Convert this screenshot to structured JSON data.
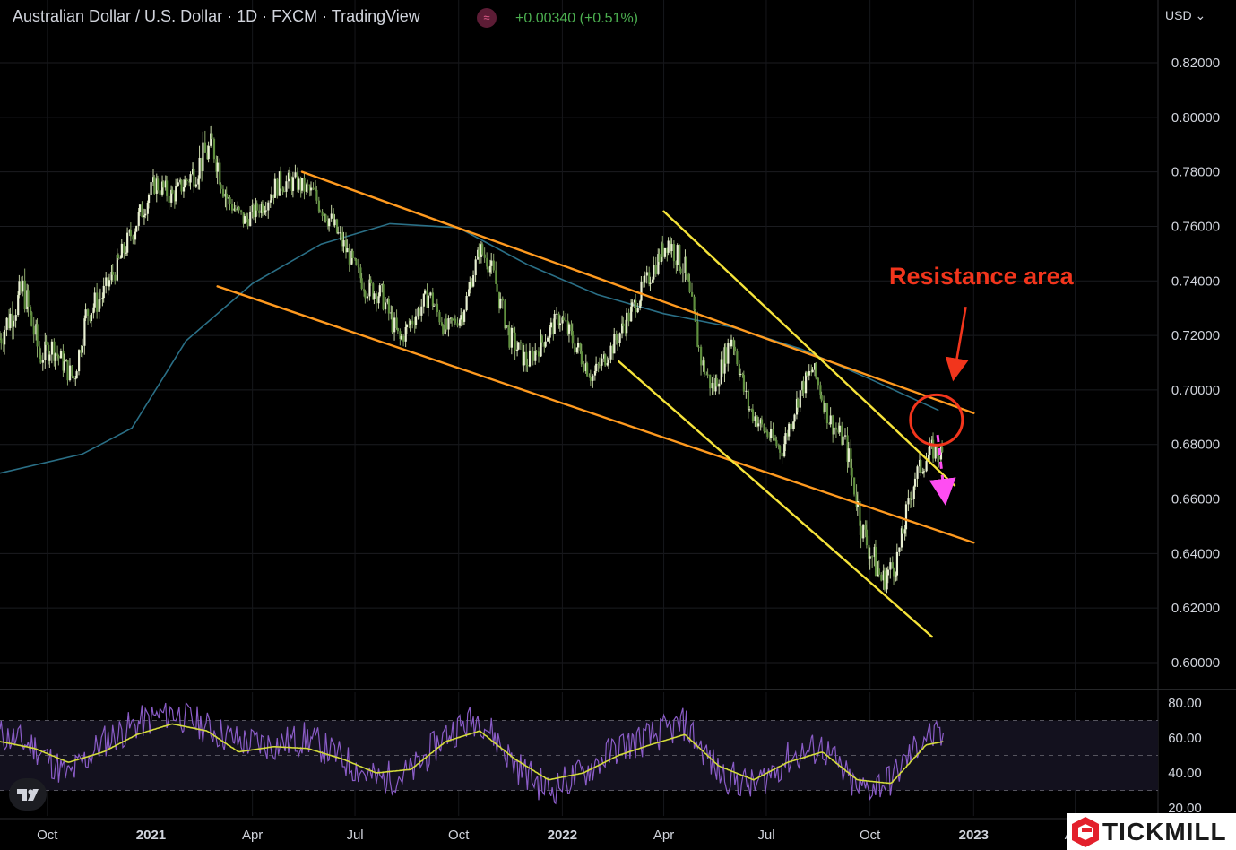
{
  "header": {
    "title": "Australian Dollar / U.S. Dollar · 1D · FXCM · TradingView",
    "indicator_icon": "≈",
    "change": "+0.00340 (+0.51%)",
    "currency": "USD"
  },
  "annotation": {
    "text": "Resistance area"
  },
  "brand": {
    "name": "TICKMILL"
  },
  "colors": {
    "background": "#000000",
    "channel": "#ff9a1f",
    "wedge": "#f5e33a",
    "moving_average": "#2a6f86",
    "rsi": "#8a5cc7",
    "rsi_ma": "#d4dc3a",
    "annotation": "#f2351c",
    "projection": "#ff4df2",
    "positive": "#4caf50"
  },
  "chart_data": [
    {
      "type": "line",
      "title": "Australian Dollar / U.S. Dollar · 1D · FXCM · TradingView",
      "x_tick_labels": [
        "Oct",
        "2021",
        "Apr",
        "Jul",
        "Oct",
        "2022",
        "Apr",
        "Jul",
        "Oct",
        "2023",
        "Apr"
      ],
      "y_tick_labels": [
        "0.82000",
        "0.80000",
        "0.78000",
        "0.76000",
        "0.74000",
        "0.72000",
        "0.70000",
        "0.68000",
        "0.66000",
        "0.64000",
        "0.62000",
        "0.60000"
      ],
      "ylim": [
        0.595,
        0.835
      ],
      "grid": true,
      "x_range": [
        "2020-08-20",
        "2023-06-12"
      ],
      "series": [
        {
          "kind": "candlestick",
          "x": [
            "2020-08-20",
            "2020-09-10",
            "2020-09-25",
            "2020-10-05",
            "2020-10-25",
            "2020-11-05",
            "2020-11-20",
            "2020-12-05",
            "2020-12-20",
            "2021-01-05",
            "2021-01-20",
            "2021-02-05",
            "2021-02-25",
            "2021-03-10",
            "2021-03-25",
            "2021-04-10",
            "2021-04-25",
            "2021-05-10",
            "2021-05-25",
            "2021-06-10",
            "2021-06-25",
            "2021-07-10",
            "2021-07-25",
            "2021-08-10",
            "2021-08-20",
            "2021-09-05",
            "2021-09-20",
            "2021-10-05",
            "2021-10-20",
            "2021-10-30",
            "2021-11-15",
            "2021-12-01",
            "2021-12-15",
            "2021-12-30",
            "2022-01-15",
            "2022-01-28",
            "2022-02-15",
            "2022-03-05",
            "2022-03-20",
            "2022-04-05",
            "2022-04-20",
            "2022-05-05",
            "2022-05-15",
            "2022-06-01",
            "2022-06-15",
            "2022-06-30",
            "2022-07-15",
            "2022-08-01",
            "2022-08-12",
            "2022-08-25",
            "2022-09-10",
            "2022-09-25",
            "2022-10-12",
            "2022-10-25",
            "2022-11-10",
            "2022-11-25",
            "2022-12-06"
          ],
          "close": [
            0.719,
            0.737,
            0.712,
            0.716,
            0.704,
            0.728,
            0.735,
            0.748,
            0.762,
            0.776,
            0.771,
            0.778,
            0.79,
            0.77,
            0.762,
            0.768,
            0.776,
            0.776,
            0.772,
            0.762,
            0.75,
            0.738,
            0.735,
            0.718,
            0.725,
            0.735,
            0.722,
            0.728,
            0.752,
            0.745,
            0.72,
            0.71,
            0.718,
            0.727,
            0.715,
            0.705,
            0.716,
            0.73,
            0.742,
            0.755,
            0.744,
            0.71,
            0.7,
            0.72,
            0.694,
            0.685,
            0.678,
            0.7,
            0.708,
            0.69,
            0.68,
            0.648,
            0.63,
            0.637,
            0.668,
            0.678,
            0.676
          ],
          "low": [
            0.71,
            0.705,
            0.702,
            0.7,
            0.699,
            0.71,
            0.722,
            0.74,
            0.75,
            0.763,
            0.76,
            0.77,
            0.765,
            0.76,
            0.755,
            0.76,
            0.768,
            0.768,
            0.76,
            0.748,
            0.742,
            0.73,
            0.72,
            0.71,
            0.713,
            0.722,
            0.715,
            0.72,
            0.74,
            0.735,
            0.705,
            0.7,
            0.71,
            0.715,
            0.7,
            0.697,
            0.705,
            0.72,
            0.732,
            0.744,
            0.73,
            0.695,
            0.69,
            0.705,
            0.685,
            0.676,
            0.668,
            0.69,
            0.695,
            0.681,
            0.668,
            0.628,
            0.617,
            0.625,
            0.655,
            0.665,
            0.668
          ],
          "high": [
            0.728,
            0.741,
            0.72,
            0.722,
            0.715,
            0.734,
            0.742,
            0.758,
            0.77,
            0.782,
            0.778,
            0.786,
            0.801,
            0.778,
            0.77,
            0.775,
            0.79,
            0.782,
            0.778,
            0.77,
            0.758,
            0.745,
            0.742,
            0.725,
            0.73,
            0.74,
            0.73,
            0.735,
            0.755,
            0.752,
            0.726,
            0.718,
            0.725,
            0.732,
            0.722,
            0.712,
            0.722,
            0.738,
            0.748,
            0.765,
            0.752,
            0.718,
            0.705,
            0.728,
            0.7,
            0.692,
            0.684,
            0.708,
            0.712,
            0.695,
            0.69,
            0.655,
            0.64,
            0.645,
            0.675,
            0.682,
            0.685
          ]
        },
        {
          "name": "",
          "kind": "moving_average",
          "x": [
            "2020-08-20",
            "2020-11-01",
            "2020-12-15",
            "2021-02-01",
            "2021-04-01",
            "2021-06-01",
            "2021-08-01",
            "2021-10-01",
            "2021-12-01",
            "2022-02-01",
            "2022-04-01",
            "2022-06-01",
            "2022-08-01",
            "2022-10-01",
            "2022-12-01"
          ],
          "values": [
            0.6695,
            0.6765,
            0.686,
            0.718,
            0.739,
            0.7535,
            0.761,
            0.7595,
            0.746,
            0.735,
            0.728,
            0.723,
            0.715,
            0.704,
            0.6925
          ]
        }
      ],
      "trendlines": [
        {
          "name": "",
          "color": "channel",
          "from": [
            "2021-05-15",
            0.78
          ],
          "to": [
            "2023-01-01",
            0.6915
          ]
        },
        {
          "name": "",
          "color": "channel",
          "from": [
            "2021-03-01",
            0.738
          ],
          "to": [
            "2023-01-01",
            0.644
          ]
        },
        {
          "name": "",
          "color": "wedge",
          "from": [
            "2022-04-01",
            0.7655
          ],
          "to": [
            "2022-12-15",
            0.665
          ]
        },
        {
          "name": "",
          "color": "wedge",
          "from": [
            "2022-02-20",
            0.7105
          ],
          "to": [
            "2022-11-25",
            0.6095
          ]
        }
      ],
      "markers": [
        {
          "kind": "ellipse",
          "center": [
            "2022-11-25",
            0.689
          ],
          "color": "annotation"
        },
        {
          "kind": "arrow",
          "from": [
            "2022-12-25",
            0.7305
          ],
          "to": [
            "2022-12-15",
            0.7065
          ],
          "color": "annotation"
        },
        {
          "kind": "dashed-arrow",
          "from": [
            "2022-11-30",
            0.6835
          ],
          "to": [
            "2022-12-06",
            0.6615
          ],
          "color": "projection"
        }
      ]
    },
    {
      "type": "line",
      "title": "",
      "y_tick_labels": [
        "80.00",
        "60.00",
        "40.00",
        "20.00"
      ],
      "ylim": [
        19,
        82
      ],
      "bands": [
        30,
        50,
        70
      ],
      "series": [
        {
          "name": "",
          "kind": "rsi",
          "x": [
            "2020-08-20",
            "2020-09-20",
            "2020-10-20",
            "2020-11-20",
            "2020-12-20",
            "2021-01-20",
            "2021-02-20",
            "2021-03-20",
            "2021-04-20",
            "2021-05-20",
            "2021-06-20",
            "2021-07-20",
            "2021-08-20",
            "2021-09-20",
            "2021-10-20",
            "2021-11-20",
            "2021-12-20",
            "2022-01-20",
            "2022-02-20",
            "2022-03-20",
            "2022-04-20",
            "2022-05-20",
            "2022-06-20",
            "2022-07-20",
            "2022-08-20",
            "2022-09-20",
            "2022-10-20",
            "2022-11-20",
            "2022-12-06"
          ],
          "values": [
            62,
            55,
            38,
            58,
            68,
            75,
            66,
            58,
            56,
            60,
            48,
            36,
            40,
            62,
            72,
            45,
            30,
            40,
            55,
            60,
            68,
            40,
            32,
            48,
            55,
            30,
            36,
            62,
            58
          ]
        },
        {
          "name": "",
          "kind": "rsi_ma",
          "x": [
            "2020-08-20",
            "2020-09-20",
            "2020-10-20",
            "2020-11-20",
            "2020-12-20",
            "2021-01-20",
            "2021-02-20",
            "2021-03-20",
            "2021-04-20",
            "2021-05-20",
            "2021-06-20",
            "2021-07-20",
            "2021-08-20",
            "2021-09-20",
            "2021-10-20",
            "2021-11-20",
            "2021-12-20",
            "2022-01-20",
            "2022-02-20",
            "2022-03-20",
            "2022-04-20",
            "2022-05-20",
            "2022-06-20",
            "2022-07-20",
            "2022-08-20",
            "2022-09-20",
            "2022-10-20",
            "2022-11-20",
            "2022-12-06"
          ],
          "values": [
            58,
            54,
            46,
            52,
            62,
            68,
            64,
            52,
            55,
            54,
            48,
            40,
            42,
            58,
            64,
            48,
            36,
            40,
            50,
            56,
            62,
            44,
            36,
            46,
            52,
            36,
            34,
            56,
            58
          ]
        }
      ]
    }
  ]
}
